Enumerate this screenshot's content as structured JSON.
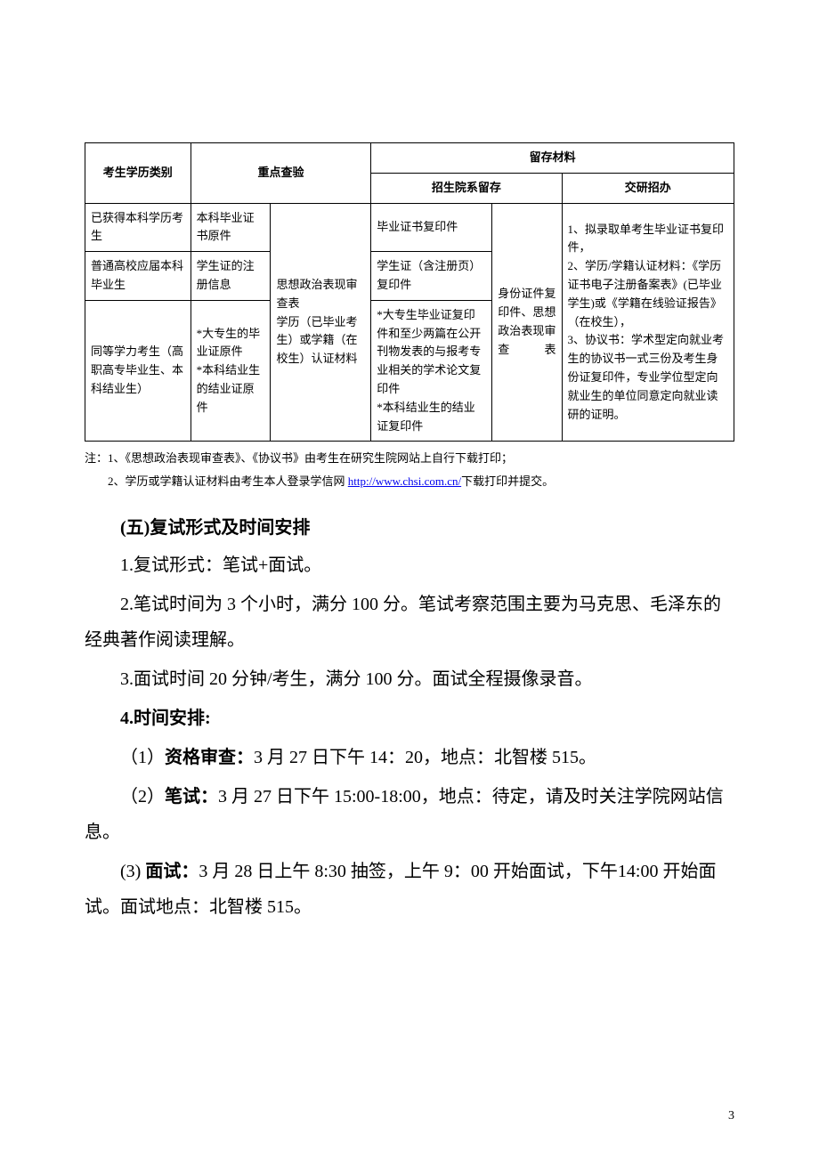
{
  "table": {
    "headers": {
      "col1": "考生学历类别",
      "col2": "重点查验",
      "col3": "留存材料",
      "col3_sub1": "招生院系留存",
      "col3_sub2": "交研招办"
    },
    "rows": {
      "r1c1": "已获得本科学历考生",
      "r1c2a": "本科毕业证书原件",
      "r1c4": "毕业证书复印件",
      "r2c1": "普通高校应届本科毕业生",
      "r2c2a": "学生证的注册信息",
      "r2c4": "学生证（含注册页）复印件",
      "r3c1": "同等学力考生（高职高专毕业生、本科结业生）",
      "r3c2a": "*大专生的毕业证原件\n*本科结业生的结业证原件",
      "r3c2b_merged": "思想政治表现审查表\n学历（已毕业考生）或学籍（在校生）认证材料",
      "r3c4": "*大专生毕业证复印件和至少两篇在公开刊物发表的与报考专业相关的学术论文复印件\n*本科结业生的结业证复印件",
      "col5_merged": "身份证件复印件、思想政治表现审查表",
      "col6_merged": "1、拟录取单考生毕业证书复印件，\n2、学历/学籍认证材料：《学历证书电子注册备案表》(已毕业学生)或《学籍在线验证报告》（在校生），\n3、协议书：学术型定向就业考生的协议书一式三份及考生身份证复印件，专业学位型定向就业生的单位同意定向就业读研的证明。"
    }
  },
  "notes": {
    "prefix": "注：",
    "n1": "1、《思想政治表现审查表》、《协议书》由考生在研究生院网站上自行下载打印；",
    "n2_pre": "2、学历或学籍认证材料由考生本人登录学信网 ",
    "n2_link": "http://www.chsi.com.cn/",
    "n2_post": "下载打印并提交。"
  },
  "section": {
    "heading": "(五)复试形式及时间安排",
    "p1": "1.复试形式：笔试+面试。",
    "p2": "2.笔试时间为 3 个小时，满分 100 分。笔试考察范围主要为马克思、毛泽东的经典著作阅读理解。",
    "p3": "3.面试时间 20 分钟/考生，满分 100 分。面试全程摄像录音。",
    "p4_bold": "4.时间安排:",
    "p5_pre": "（1）",
    "p5_bold": "资格审查：",
    "p5_text": "3 月 27 日下午 14：20，地点：北智楼 515。",
    "p6_pre": "（2）",
    "p6_bold": "笔试：",
    "p6_text": "3 月 27 日下午 15:00-18:00，地点：待定，请及时关注学院网站信息。",
    "p7_pre": "(3) ",
    "p7_bold": "面试：",
    "p7_text": "3 月 28 日上午 8:30 抽签，上午 9：00 开始面试，下午14:00 开始面试。面试地点：北智楼 515。"
  },
  "pageNumber": "3"
}
